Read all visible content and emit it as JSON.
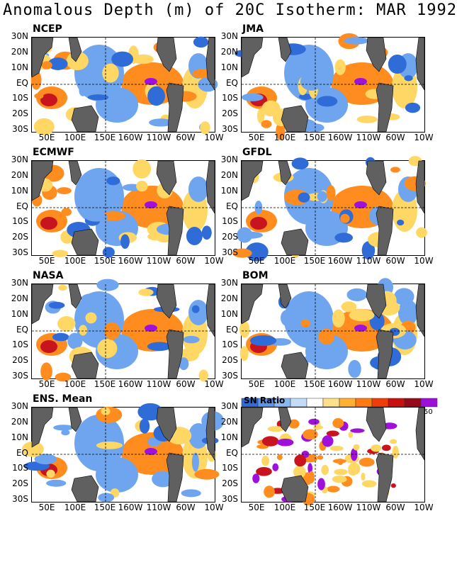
{
  "title": "Anomalous Depth (m) of 20C Isotherm: MAR 1992",
  "chart_data": {
    "type": "heatmap",
    "title": "Anomalous Depth (m) of 20C Isotherm: MAR 1992",
    "yticks": [
      "30N",
      "20N",
      "10N",
      "EQ",
      "10S",
      "20S",
      "30S"
    ],
    "xticks": [
      "50E",
      "100E",
      "150E",
      "160W",
      "110W",
      "60W",
      "10W"
    ],
    "ylim": [
      "30S",
      "30N"
    ],
    "panels": [
      {
        "name": "NCEP"
      },
      {
        "name": "JMA"
      },
      {
        "name": "ECMWF"
      },
      {
        "name": "GFDL"
      },
      {
        "name": "NASA"
      },
      {
        "name": "BOM"
      },
      {
        "name": "ENS. Mean"
      },
      {
        "name": "SN Ratio"
      }
    ],
    "colorbar": {
      "label": "SN Ratio",
      "max_label": "50",
      "colors": [
        "#2f6cd8",
        "#5a95ea",
        "#8ab8f2",
        "#c2dcf8",
        "#ffffff",
        "#ffe08a",
        "#ffb030",
        "#ff7a10",
        "#ee3c0a",
        "#c81010",
        "#940a1a",
        "#9a10d6"
      ]
    },
    "legend": "top-right",
    "grid": true
  },
  "colors": {
    "land": "#606060",
    "strong_positive": "#c8141e",
    "positive": "#ff8c1e",
    "weak_positive": "#ffd764",
    "negative": "#6ea5ee",
    "strong_negative": "#2f6cd8",
    "extreme": "#a010dc"
  }
}
